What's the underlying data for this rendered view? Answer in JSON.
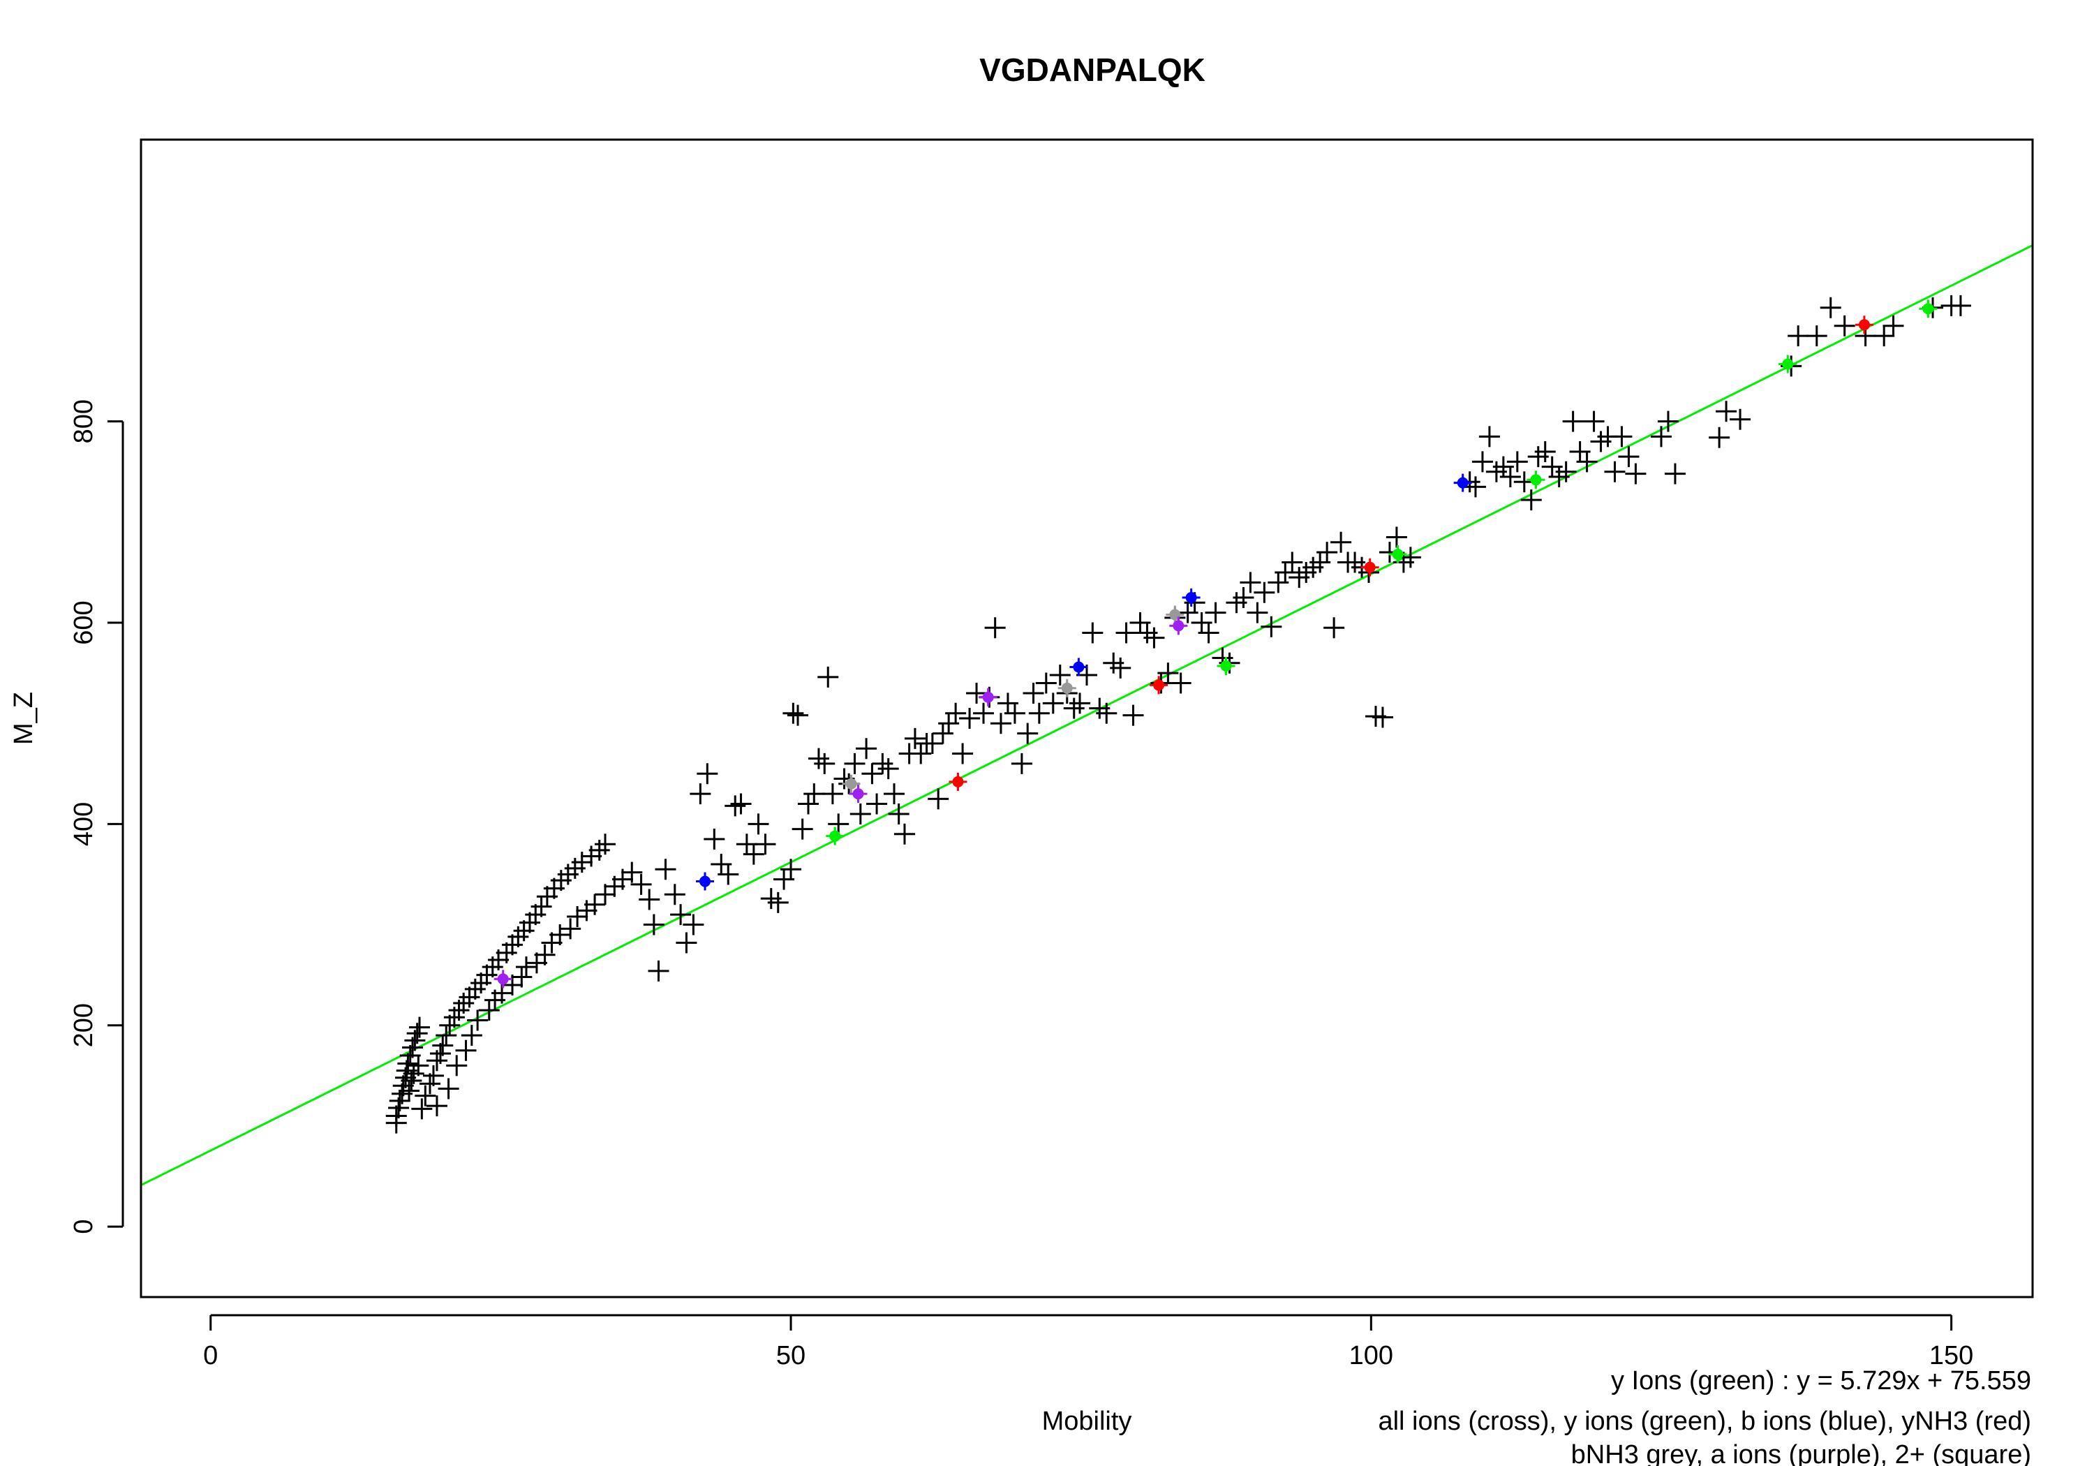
{
  "colors": {
    "background": "#ffffff",
    "axis": "#000000",
    "all_ions": "#000000",
    "y_ions": "#00ee00",
    "b_ions": "#0000ff",
    "yNH3": "#ff0000",
    "bNH3": "#999999",
    "a_ions": "#a020f0",
    "fit_line": "#00ee00"
  },
  "chart_data": {
    "type": "scatter",
    "title": "VGDANPALQK",
    "xlabel": "Mobility",
    "ylabel": "M_Z",
    "xlim": [
      -6,
      157
    ],
    "ylim": [
      -70,
      1080
    ],
    "xticks": [
      0,
      50,
      100,
      150
    ],
    "yticks": [
      0,
      200,
      400,
      600,
      800
    ],
    "grid": false,
    "legend_lines": [
      "all ions (cross), y ions (green), b ions (blue), yNH3 (red)",
      "bNH3 grey, a ions (purple), 2+ (square)"
    ],
    "fit": {
      "label": "y Ions (green) : y = 5.729x + 75.559",
      "slope": 5.729,
      "intercept": 75.559
    },
    "series": [
      {
        "name": "all ions (cross)",
        "color": "#000000",
        "marker": "cross",
        "points": [
          [
            16,
            103
          ],
          [
            16,
            110
          ],
          [
            16.2,
            118
          ],
          [
            16.3,
            125
          ],
          [
            16.5,
            132
          ],
          [
            16.6,
            140
          ],
          [
            16.8,
            148
          ],
          [
            16.9,
            155
          ],
          [
            17,
            162
          ],
          [
            17.2,
            170
          ],
          [
            17.4,
            178
          ],
          [
            17.6,
            185
          ],
          [
            17.8,
            192
          ],
          [
            18,
            198
          ],
          [
            17.1,
            135
          ],
          [
            17.3,
            145
          ],
          [
            17.5,
            152
          ],
          [
            17.9,
            160
          ],
          [
            18.2,
            117
          ],
          [
            18.5,
            130
          ],
          [
            18.9,
            142
          ],
          [
            19.2,
            150
          ],
          [
            19.5,
            165
          ],
          [
            19.8,
            172
          ],
          [
            20,
            180
          ],
          [
            20.3,
            190
          ],
          [
            20.6,
            200
          ],
          [
            21,
            208
          ],
          [
            21.4,
            215
          ],
          [
            21.8,
            222
          ],
          [
            22.3,
            228
          ],
          [
            22.8,
            236
          ],
          [
            23.3,
            242
          ],
          [
            23.8,
            250
          ],
          [
            24.3,
            258
          ],
          [
            24.8,
            265
          ],
          [
            25.5,
            272
          ],
          [
            26,
            280
          ],
          [
            26.5,
            288
          ],
          [
            27,
            294
          ],
          [
            27.5,
            302
          ],
          [
            28,
            310
          ],
          [
            28.5,
            318
          ],
          [
            29,
            328
          ],
          [
            29.6,
            336
          ],
          [
            30.2,
            344
          ],
          [
            30.8,
            350
          ],
          [
            31.4,
            356
          ],
          [
            32,
            362
          ],
          [
            32.8,
            368
          ],
          [
            33.5,
            374
          ],
          [
            34,
            380
          ],
          [
            19.5,
            120
          ],
          [
            20.5,
            137
          ],
          [
            21.2,
            160
          ],
          [
            22,
            175
          ],
          [
            22.5,
            190
          ],
          [
            23,
            205
          ],
          [
            24,
            215
          ],
          [
            24.5,
            225
          ],
          [
            25.1,
            232
          ],
          [
            26,
            240
          ],
          [
            26.8,
            248
          ],
          [
            27.2,
            258
          ],
          [
            28.1,
            262
          ],
          [
            28.8,
            270
          ],
          [
            29.4,
            282
          ],
          [
            30.1,
            290
          ],
          [
            31,
            296
          ],
          [
            31.6,
            308
          ],
          [
            32.4,
            314
          ],
          [
            33.1,
            320
          ],
          [
            34,
            330
          ],
          [
            34.8,
            338
          ],
          [
            35.5,
            345
          ],
          [
            36.3,
            352
          ],
          [
            37.1,
            340
          ],
          [
            37.8,
            325
          ],
          [
            38.2,
            300
          ],
          [
            38.6,
            254
          ],
          [
            39.2,
            355
          ],
          [
            40,
            330
          ],
          [
            40.5,
            310
          ],
          [
            41,
            282
          ],
          [
            41.6,
            300
          ],
          [
            42.2,
            430
          ],
          [
            42.8,
            450
          ],
          [
            43.4,
            385
          ],
          [
            44,
            360
          ],
          [
            44.6,
            350
          ],
          [
            45.2,
            418
          ],
          [
            45.7,
            420
          ],
          [
            46.2,
            380
          ],
          [
            46.8,
            370
          ],
          [
            47.2,
            400
          ],
          [
            47.8,
            380
          ],
          [
            48.3,
            326
          ],
          [
            48.9,
            322
          ],
          [
            49.4,
            345
          ],
          [
            50,
            355
          ],
          [
            50.2,
            510
          ],
          [
            50.6,
            508
          ],
          [
            51,
            395
          ],
          [
            51.5,
            420
          ],
          [
            52,
            430
          ],
          [
            52.4,
            465
          ],
          [
            52.9,
            460
          ],
          [
            53.2,
            546
          ],
          [
            53.6,
            430
          ],
          [
            54.1,
            400
          ],
          [
            54.6,
            445
          ],
          [
            55,
            440
          ],
          [
            55.5,
            460
          ],
          [
            56,
            410
          ],
          [
            56.5,
            475
          ],
          [
            57,
            450
          ],
          [
            57.4,
            420
          ],
          [
            57.9,
            460
          ],
          [
            58.4,
            455
          ],
          [
            58.9,
            430
          ],
          [
            59.3,
            410
          ],
          [
            59.8,
            390
          ],
          [
            60.2,
            470
          ],
          [
            60.7,
            485
          ],
          [
            61.2,
            470
          ],
          [
            61.7,
            480
          ],
          [
            62.2,
            480
          ],
          [
            62.7,
            425
          ],
          [
            63.1,
            490
          ],
          [
            63.6,
            500
          ],
          [
            64.2,
            510
          ],
          [
            64.8,
            470
          ],
          [
            65.4,
            505
          ],
          [
            66,
            530
          ],
          [
            66.6,
            510
          ],
          [
            67.1,
            526
          ],
          [
            67.6,
            595
          ],
          [
            68.1,
            500
          ],
          [
            68.7,
            520
          ],
          [
            69.3,
            510
          ],
          [
            69.9,
            460
          ],
          [
            70.4,
            490
          ],
          [
            70.9,
            530
          ],
          [
            71.4,
            510
          ],
          [
            72,
            540
          ],
          [
            72.6,
            520
          ],
          [
            73.2,
            548
          ],
          [
            73.8,
            530
          ],
          [
            74.4,
            515
          ],
          [
            74.9,
            520
          ],
          [
            75.5,
            548
          ],
          [
            76,
            590
          ],
          [
            76.6,
            515
          ],
          [
            77.2,
            510
          ],
          [
            77.8,
            560
          ],
          [
            78.4,
            555
          ],
          [
            78.9,
            590
          ],
          [
            79.5,
            508
          ],
          [
            80.1,
            600
          ],
          [
            80.7,
            590
          ],
          [
            81.3,
            585
          ],
          [
            81.9,
            540
          ],
          [
            82.5,
            550
          ],
          [
            83.1,
            605
          ],
          [
            83.6,
            540
          ],
          [
            84.2,
            610
          ],
          [
            84.8,
            620
          ],
          [
            85.4,
            600
          ],
          [
            86,
            590
          ],
          [
            86.6,
            610
          ],
          [
            87.2,
            565
          ],
          [
            87.8,
            560
          ],
          [
            88.4,
            620
          ],
          [
            89,
            625
          ],
          [
            89.6,
            640
          ],
          [
            90.2,
            610
          ],
          [
            90.8,
            630
          ],
          [
            91.4,
            596
          ],
          [
            92,
            640
          ],
          [
            92.6,
            650
          ],
          [
            93.2,
            660
          ],
          [
            93.8,
            645
          ],
          [
            94.4,
            650
          ],
          [
            95,
            655
          ],
          [
            95.6,
            660
          ],
          [
            96.2,
            670
          ],
          [
            96.8,
            595
          ],
          [
            97.4,
            680
          ],
          [
            98,
            660
          ],
          [
            98.6,
            660
          ],
          [
            99.2,
            655
          ],
          [
            99.8,
            650
          ],
          [
            100.4,
            507
          ],
          [
            101,
            506
          ],
          [
            101.6,
            670
          ],
          [
            102.2,
            685
          ],
          [
            102.8,
            660
          ],
          [
            103.4,
            665
          ],
          [
            108.5,
            740
          ],
          [
            109,
            735
          ],
          [
            109.6,
            760
          ],
          [
            110.2,
            785
          ],
          [
            110.8,
            750
          ],
          [
            111.4,
            755
          ],
          [
            112,
            745
          ],
          [
            112.6,
            760
          ],
          [
            113.2,
            740
          ],
          [
            113.8,
            722
          ],
          [
            114.4,
            765
          ],
          [
            115,
            770
          ],
          [
            115.6,
            755
          ],
          [
            116.2,
            745
          ],
          [
            116.8,
            750
          ],
          [
            117.4,
            800
          ],
          [
            118,
            770
          ],
          [
            118.6,
            760
          ],
          [
            119.2,
            800
          ],
          [
            119.8,
            780
          ],
          [
            120.4,
            785
          ],
          [
            121,
            750
          ],
          [
            121.6,
            785
          ],
          [
            122.2,
            765
          ],
          [
            122.8,
            748
          ],
          [
            125,
            785
          ],
          [
            125.6,
            800
          ],
          [
            126.2,
            748
          ],
          [
            130,
            784
          ],
          [
            130.6,
            810
          ],
          [
            131.8,
            802
          ],
          [
            136.2,
            855
          ],
          [
            136.8,
            885
          ],
          [
            138.4,
            885
          ],
          [
            139.6,
            913
          ],
          [
            140.8,
            895
          ],
          [
            142.6,
            885
          ],
          [
            144.2,
            885
          ],
          [
            145,
            895
          ],
          [
            148.4,
            913
          ],
          [
            150,
            915
          ],
          [
            150.8,
            915
          ]
        ]
      },
      {
        "name": "y ions (green)",
        "color": "#00ee00",
        "marker": "dot",
        "points": [
          [
            53.8,
            388
          ],
          [
            87.5,
            557
          ],
          [
            102.3,
            668
          ],
          [
            114.2,
            742
          ],
          [
            135.9,
            857
          ],
          [
            148,
            912
          ]
        ]
      },
      {
        "name": "b ions (blue)",
        "color": "#0000ff",
        "marker": "dot",
        "points": [
          [
            42.6,
            343
          ],
          [
            74.8,
            556
          ],
          [
            84.5,
            625
          ],
          [
            107.9,
            739
          ]
        ]
      },
      {
        "name": "yNH3 (red)",
        "color": "#ff0000",
        "marker": "dot",
        "points": [
          [
            64.4,
            442
          ],
          [
            81.7,
            538
          ],
          [
            99.9,
            655
          ],
          [
            142.5,
            896
          ]
        ]
      },
      {
        "name": "bNH3 grey",
        "color": "#999999",
        "marker": "dot",
        "points": [
          [
            55.2,
            440
          ],
          [
            73.8,
            535
          ],
          [
            83.1,
            608
          ]
        ]
      },
      {
        "name": "a ions (purple)",
        "color": "#a020f0",
        "marker": "dot",
        "points": [
          [
            25.2,
            246
          ],
          [
            55.8,
            430
          ],
          [
            67,
            526
          ],
          [
            83.4,
            597
          ]
        ]
      }
    ]
  }
}
